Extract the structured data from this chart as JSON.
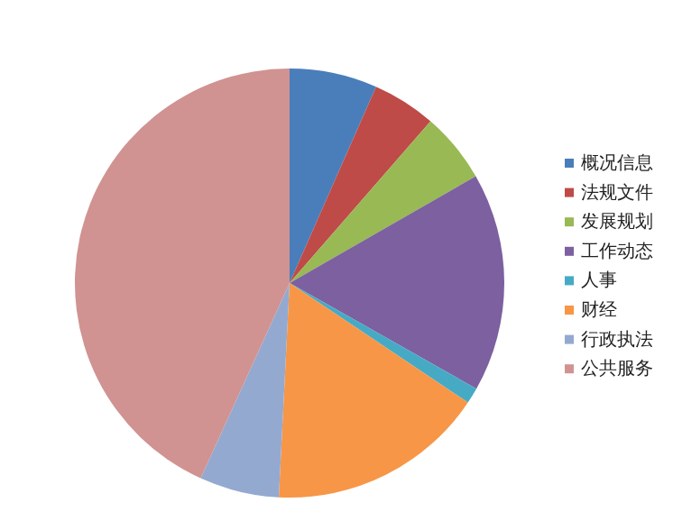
{
  "chart_data": {
    "type": "pie",
    "categories": [
      "概况信息",
      "法规文件",
      "发展规划",
      "工作动态",
      "人事",
      "财经",
      "行政执法",
      "公共服务"
    ],
    "values": [
      6.6,
      4.8,
      5.3,
      16.5,
      1.2,
      16.4,
      6.0,
      43.2
    ],
    "colors": [
      "#4a7ebb",
      "#be4b48",
      "#98b954",
      "#7d60a0",
      "#46aac5",
      "#f79646",
      "#94a9d0",
      "#d09392"
    ],
    "legend": "right"
  }
}
